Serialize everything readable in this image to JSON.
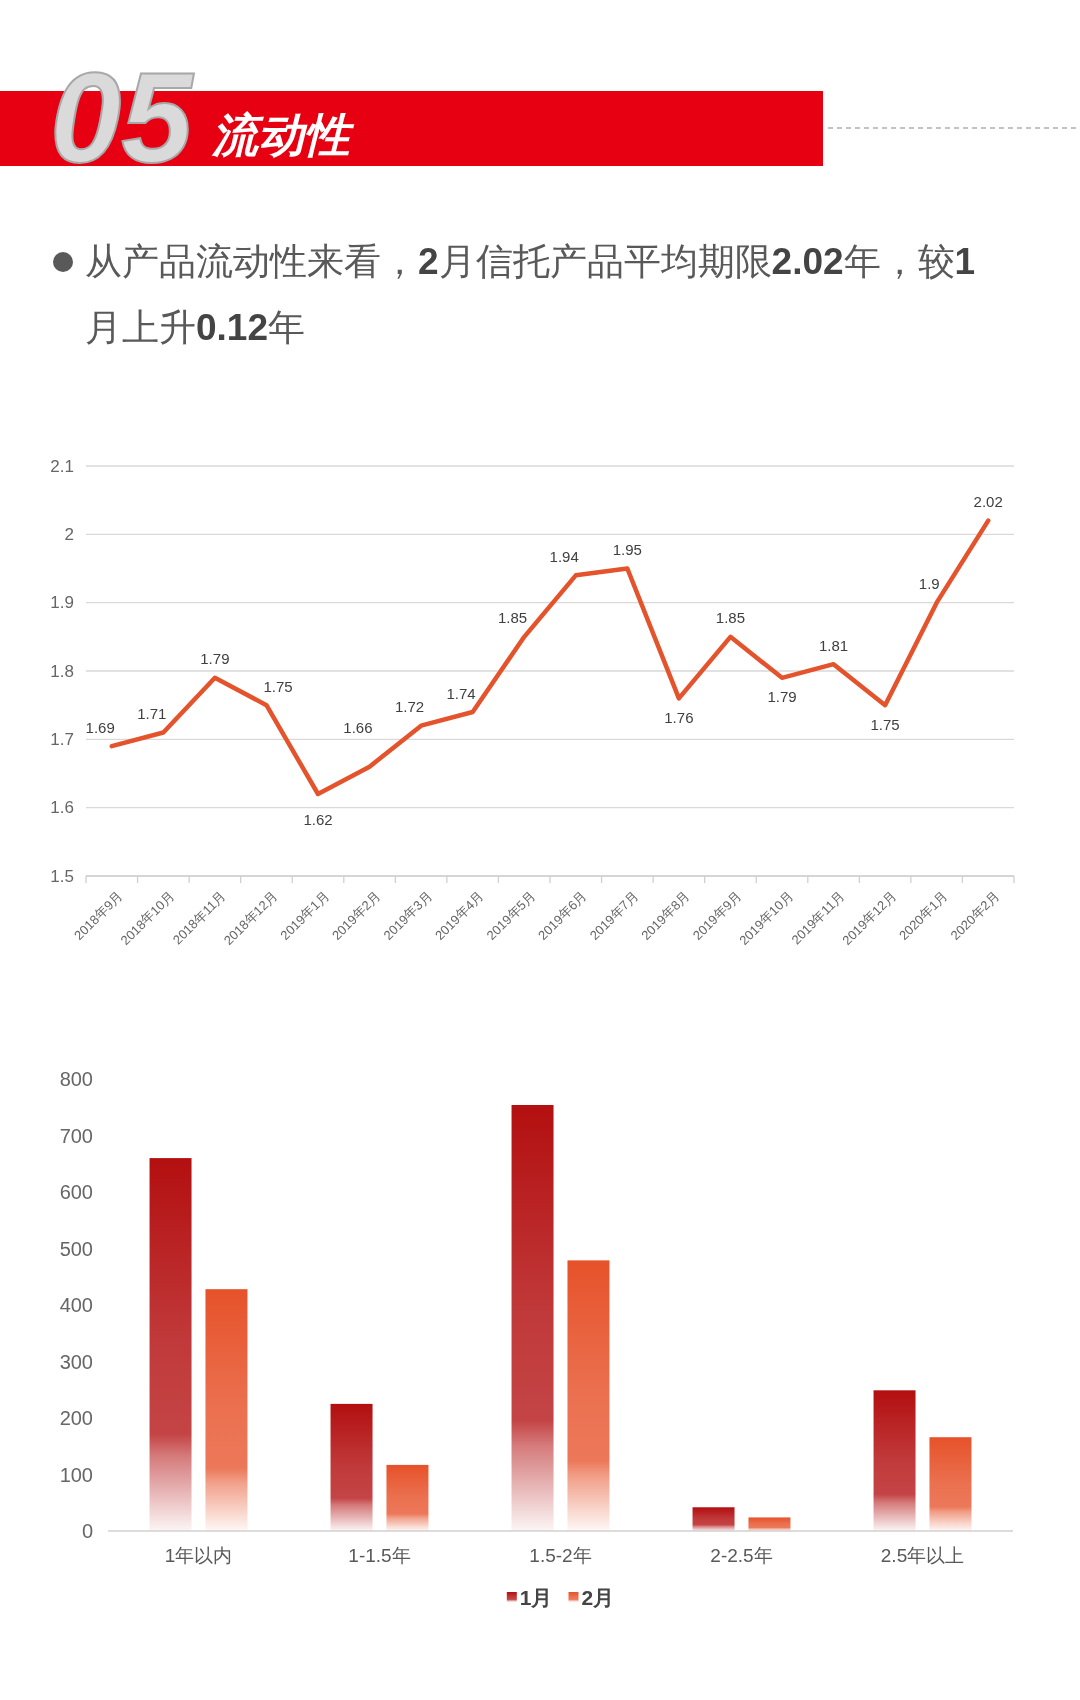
{
  "chart_data": [
    {
      "type": "line",
      "title": "流动性",
      "subtitle": "从产品流动性来看，**2**月信托产品平均期限**2.02**年，较**1**月上升**0.12**年",
      "annotations": [
        "05"
      ],
      "categories": [
        "2018年9月",
        "2018年10月",
        "2018年11月",
        "2018年12月",
        "2019年1月",
        "2019年2月",
        "2019年3月",
        "2019年4月",
        "2019年5月",
        "2019年6月",
        "2019年7月",
        "2019年8月",
        "2019年9月",
        "2019年10月",
        "2019年11月",
        "2019年12月",
        "2020年1月",
        "2020年2月"
      ],
      "series": [
        {
          "color": "#e4532b",
          "values": [
            1.69,
            1.71,
            1.79,
            1.75,
            1.62,
            1.66,
            1.72,
            1.74,
            1.85,
            1.94,
            1.95,
            1.76,
            1.85,
            1.79,
            1.81,
            1.75,
            1.9,
            2.02
          ]
        }
      ],
      "ylim": [
        1.5,
        2.1
      ],
      "yticks": [
        1.5,
        1.6,
        1.7,
        1.8,
        1.9,
        2,
        2.1
      ],
      "grid": "y",
      "data_labels": true,
      "marker": "none",
      "line_style": "solid"
    },
    {
      "type": "bar",
      "categories": [
        "1年以内",
        "1-1.5年",
        "1.5-2年",
        "2-2.5年",
        "2.5年以上"
      ],
      "series": [
        {
          "name": "1月",
          "color": "#b30f10",
          "values": [
            660,
            225,
            754,
            42,
            249
          ]
        },
        {
          "name": "2月",
          "color": "#e6522a",
          "values": [
            428,
            117,
            479,
            24,
            166
          ]
        }
      ],
      "ylim": [
        0,
        800
      ],
      "yticks": [
        0,
        100,
        200,
        300,
        400,
        500,
        600,
        700,
        800
      ],
      "grid": false,
      "legend": "bottom"
    }
  ]
}
